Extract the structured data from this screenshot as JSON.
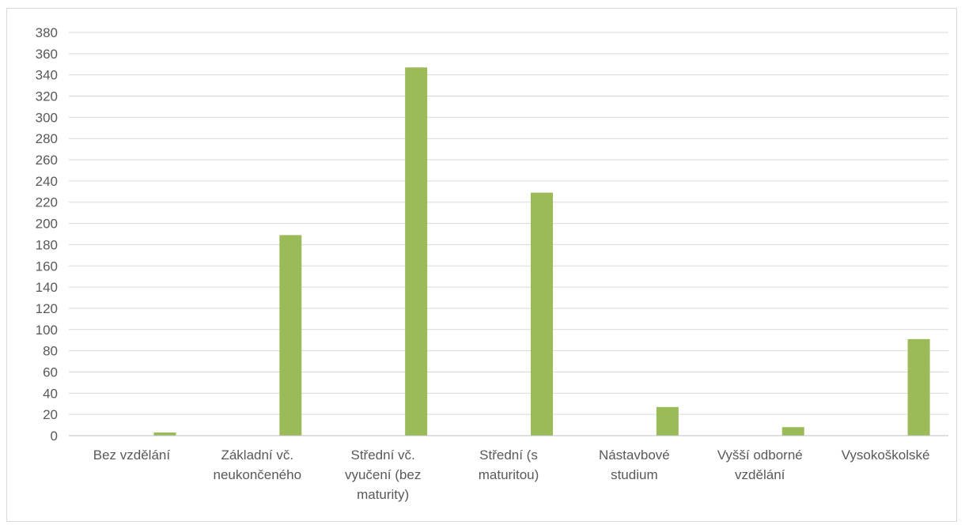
{
  "chart_data": {
    "type": "bar",
    "title": "",
    "xlabel": "",
    "ylabel": "",
    "categories": [
      "Bez vzdělání",
      "Základní vč. neukončeného",
      "Střední vč. vyučení (bez maturity)",
      "Střední (s maturitou)",
      "Nástavbové studium",
      "Vyšší odborné vzdělání",
      "Vysokoškolské"
    ],
    "category_lines": [
      [
        "Bez vzdělání"
      ],
      [
        "Základní vč.",
        "neukončeného"
      ],
      [
        "Střední vč.",
        "vyučení (bez",
        "maturity)"
      ],
      [
        "Střední (s",
        "maturitou)"
      ],
      [
        "Nástavbové",
        "studium"
      ],
      [
        "Vyšší odborné",
        "vzdělání"
      ],
      [
        "Vysokoškolské"
      ]
    ],
    "values": [
      3,
      189,
      347,
      229,
      27,
      8,
      91
    ],
    "ylim": [
      0,
      380
    ],
    "ytick_step": 20,
    "grid": true,
    "legend": "none",
    "bar_color": "#9bbb59"
  }
}
